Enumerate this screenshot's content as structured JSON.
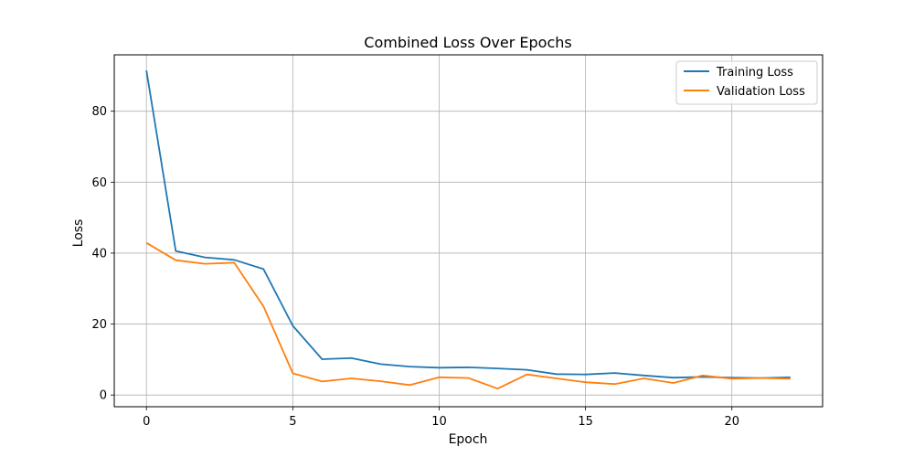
{
  "chart_data": {
    "type": "line",
    "title": "Combined Loss Over Epochs",
    "xlabel": "Epoch",
    "ylabel": "Loss",
    "xlim": [
      -1.1,
      23.1
    ],
    "ylim": [
      -3.3,
      95.9
    ],
    "xticks": [
      0,
      5,
      10,
      15,
      20
    ],
    "yticks": [
      0,
      20,
      40,
      60,
      80
    ],
    "grid": true,
    "legend_position": "top-right",
    "x": [
      0,
      1,
      2,
      3,
      4,
      5,
      6,
      7,
      8,
      9,
      10,
      11,
      12,
      13,
      14,
      15,
      16,
      17,
      18,
      19,
      20,
      21,
      22
    ],
    "series": [
      {
        "name": "Training Loss",
        "color": "#1f77b4",
        "values": [
          91.5,
          40.6,
          38.8,
          38.1,
          35.5,
          19.5,
          10.1,
          10.4,
          8.7,
          8.0,
          7.7,
          7.8,
          7.5,
          7.1,
          5.9,
          5.8,
          6.2,
          5.5,
          4.9,
          5.1,
          4.9,
          4.8,
          5.0
        ]
      },
      {
        "name": "Validation Loss",
        "color": "#ff7f0e",
        "values": [
          42.9,
          38.0,
          37.0,
          37.3,
          25.0,
          6.1,
          3.8,
          4.7,
          3.9,
          2.8,
          5.0,
          4.8,
          1.8,
          5.8,
          4.7,
          3.6,
          3.1,
          4.7,
          3.4,
          5.5,
          4.6,
          4.8,
          4.6
        ]
      }
    ]
  }
}
